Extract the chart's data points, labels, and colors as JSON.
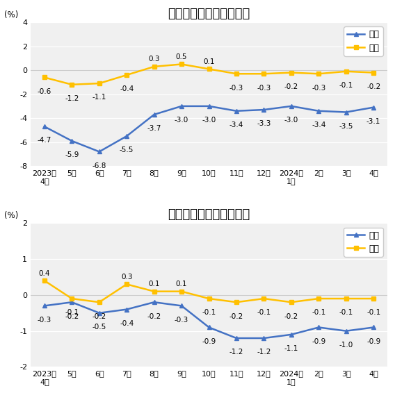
{
  "chart1": {
    "title": "生产资料出厂价格涨跌幅",
    "yib_data": [
      -4.7,
      -5.9,
      -6.8,
      -5.5,
      -3.7,
      -3.0,
      -3.0,
      -3.4,
      -3.3,
      -3.0,
      -3.4,
      -3.5,
      -3.1
    ],
    "huanb_data": [
      -0.6,
      -1.2,
      -1.1,
      -0.4,
      0.3,
      0.5,
      0.1,
      -0.3,
      -0.3,
      -0.2,
      -0.3,
      -0.1,
      -0.2
    ],
    "ylim": [
      -8.0,
      4.0
    ],
    "yticks": [
      -8.0,
      -6.0,
      -4.0,
      -2.0,
      0.0,
      2.0,
      4.0
    ]
  },
  "chart2": {
    "title": "生活资料出厂价格涨跌幅",
    "yib_data": [
      -0.3,
      -0.2,
      -0.5,
      -0.4,
      -0.2,
      -0.3,
      -0.9,
      -1.2,
      -1.2,
      -1.1,
      -0.9,
      -1.0,
      -0.9
    ],
    "huanb_data": [
      0.4,
      -0.1,
      -0.2,
      0.3,
      0.1,
      0.1,
      -0.1,
      -0.2,
      -0.1,
      -0.2,
      -0.1,
      -0.1,
      -0.1
    ],
    "ylim": [
      -2.0,
      2.0
    ],
    "yticks": [
      -2.0,
      -1.0,
      0.0,
      1.0,
      2.0
    ]
  },
  "x_labels": [
    "2023年\n4月",
    "5月",
    "6月",
    "7月",
    "8月",
    "9月",
    "10月",
    "11月",
    "12月",
    "2024年\n1月",
    "2月",
    "3月",
    "4月"
  ],
  "blue_color": "#4472C4",
  "gold_color": "#FFC000",
  "line_width": 1.8,
  "marker_size": 5,
  "font_size_title": 13,
  "font_size_pct": 8.5,
  "font_size_annot": 7.5,
  "font_size_legend": 9,
  "font_size_axis": 8,
  "background_color": "#ffffff",
  "plot_bg_color": "#f0f0f0"
}
